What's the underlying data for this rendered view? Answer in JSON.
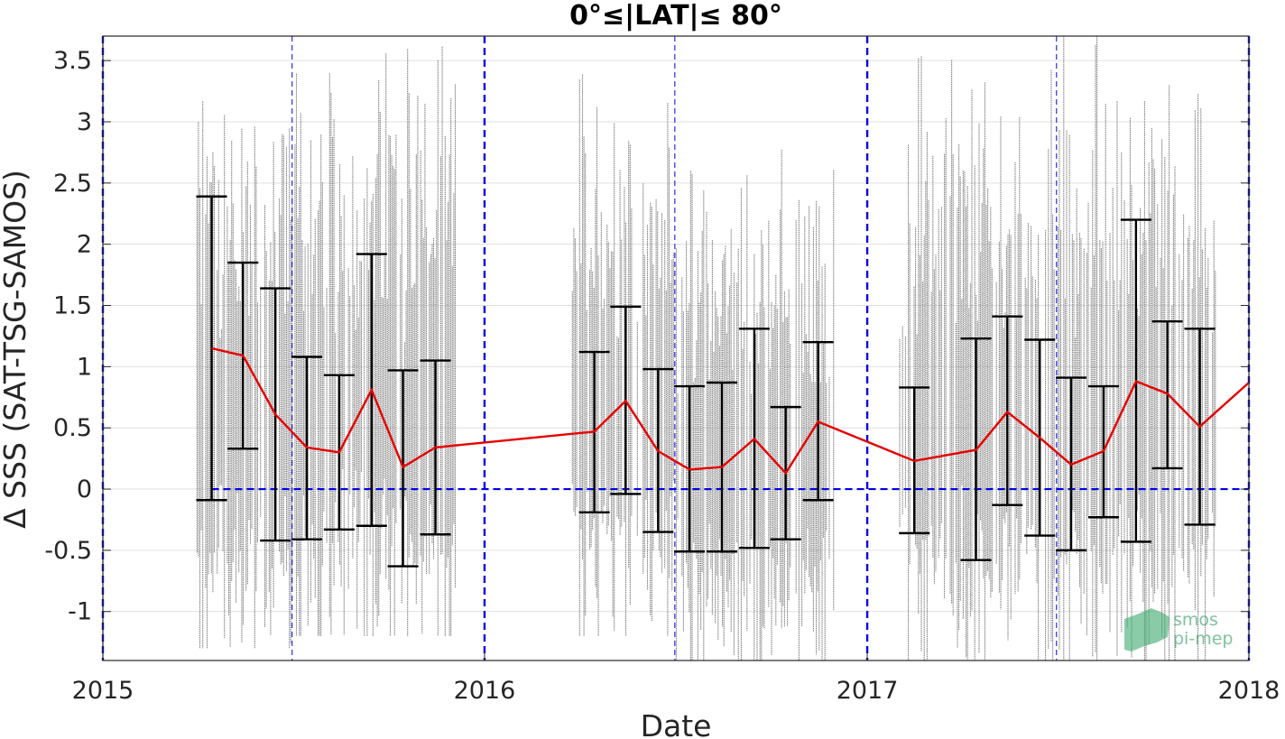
{
  "chart_data": {
    "type": "scatter",
    "title": "0°≤|LAT|≤ 80°",
    "xlabel": "Date",
    "ylabel": "Δ SSS (SAT-TSG-SAMOS)",
    "xlim": [
      "2015-01-01",
      "2018-01-01"
    ],
    "ylim": [
      -1.4,
      3.7
    ],
    "x_ticks": [
      {
        "date": "2015-01-01",
        "label": "2015"
      },
      {
        "date": "2016-01-01",
        "label": "2016"
      },
      {
        "date": "2017-01-01",
        "label": "2017"
      },
      {
        "date": "2018-01-01",
        "label": "2018"
      }
    ],
    "y_ticks": [
      {
        "value": -1,
        "label": "-1"
      },
      {
        "value": -0.5,
        "label": "-0.5"
      },
      {
        "value": 0,
        "label": "0"
      },
      {
        "value": 0.5,
        "label": "0.5"
      },
      {
        "value": 1,
        "label": "1"
      },
      {
        "value": 1.5,
        "label": "1.5"
      },
      {
        "value": 2,
        "label": "2"
      },
      {
        "value": 2.5,
        "label": "2.5"
      },
      {
        "value": 3,
        "label": "3"
      },
      {
        "value": 3.5,
        "label": "3.5"
      }
    ],
    "grid": "horizontal",
    "year_lines": [
      "2015-01-01",
      "2016-01-01",
      "2017-01-01",
      "2018-01-01"
    ],
    "midyear_lines": [
      "2015-07-01",
      "2016-07-01",
      "2017-07-01"
    ],
    "zero_line": 0,
    "colors": {
      "scatter": "#808080",
      "mean": "#e60000",
      "errorbar": "#000000",
      "reference": "#0000e6"
    },
    "mean_series": [
      {
        "date": "2015-04-15",
        "mean": 1.15,
        "low": -0.09,
        "high": 2.39
      },
      {
        "date": "2015-05-15",
        "mean": 1.09,
        "low": 0.33,
        "high": 1.85
      },
      {
        "date": "2015-06-15",
        "mean": 0.61,
        "low": -0.42,
        "high": 1.64
      },
      {
        "date": "2015-07-15",
        "mean": 0.34,
        "low": -0.41,
        "high": 1.08
      },
      {
        "date": "2015-08-15",
        "mean": 0.3,
        "low": -0.33,
        "high": 0.93
      },
      {
        "date": "2015-09-15",
        "mean": 0.81,
        "low": -0.3,
        "high": 1.92
      },
      {
        "date": "2015-10-15",
        "mean": 0.18,
        "low": -0.63,
        "high": 0.97
      },
      {
        "date": "2015-11-15",
        "mean": 0.34,
        "low": -0.37,
        "high": 1.05
      },
      {
        "date": "2016-04-15",
        "mean": 0.47,
        "low": -0.19,
        "high": 1.12
      },
      {
        "date": "2016-05-15",
        "mean": 0.72,
        "low": -0.04,
        "high": 1.49
      },
      {
        "date": "2016-06-15",
        "mean": 0.31,
        "low": -0.35,
        "high": 0.98
      },
      {
        "date": "2016-07-15",
        "mean": 0.16,
        "low": -0.51,
        "high": 0.84
      },
      {
        "date": "2016-08-15",
        "mean": 0.18,
        "low": -0.51,
        "high": 0.87
      },
      {
        "date": "2016-09-15",
        "mean": 0.41,
        "low": -0.48,
        "high": 1.31
      },
      {
        "date": "2016-10-15",
        "mean": 0.13,
        "low": -0.41,
        "high": 0.67
      },
      {
        "date": "2016-11-15",
        "mean": 0.55,
        "low": -0.09,
        "high": 1.2
      },
      {
        "date": "2017-02-15",
        "mean": 0.23,
        "low": -0.36,
        "high": 0.83
      },
      {
        "date": "2017-04-15",
        "mean": 0.32,
        "low": -0.58,
        "high": 1.23
      },
      {
        "date": "2017-05-15",
        "mean": 0.63,
        "low": -0.13,
        "high": 1.41
      },
      {
        "date": "2017-06-15",
        "mean": 0.42,
        "low": -0.38,
        "high": 1.22
      },
      {
        "date": "2017-07-15",
        "mean": 0.2,
        "low": -0.5,
        "high": 0.91
      },
      {
        "date": "2017-08-15",
        "mean": 0.31,
        "low": -0.23,
        "high": 0.84
      },
      {
        "date": "2017-09-15",
        "mean": 0.88,
        "low": -0.43,
        "high": 2.2
      },
      {
        "date": "2017-10-15",
        "mean": 0.78,
        "low": 0.17,
        "high": 1.37
      },
      {
        "date": "2017-11-15",
        "mean": 0.51,
        "low": -0.29,
        "high": 1.31
      },
      {
        "date": "2018-01-01",
        "mean": 0.87
      }
    ],
    "scatter_spread": [
      {
        "start": "2015-04-01",
        "end": "2015-06-30",
        "low": -1.3,
        "high": 3.7
      },
      {
        "start": "2015-07-01",
        "end": "2015-12-05",
        "low": -1.2,
        "high": 3.7
      },
      {
        "start": "2016-03-25",
        "end": "2016-06-30",
        "low": -1.2,
        "high": 3.7
      },
      {
        "start": "2016-07-01",
        "end": "2016-11-30",
        "low": -1.4,
        "high": 3.0
      },
      {
        "start": "2017-02-01",
        "end": "2017-06-30",
        "low": -1.4,
        "high": 3.7
      },
      {
        "start": "2017-07-01",
        "end": "2017-11-30",
        "low": -1.4,
        "high": 3.7
      }
    ]
  },
  "watermark": {
    "text_line1": "smos",
    "text_line2": "pi-mep"
  }
}
